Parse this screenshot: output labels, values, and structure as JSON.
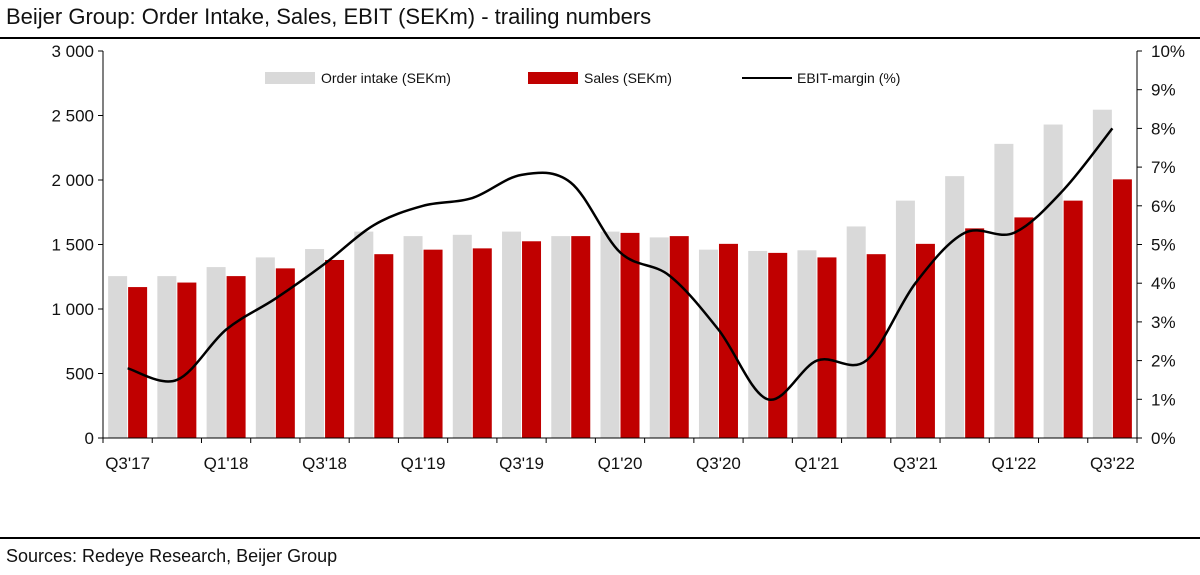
{
  "title": "Beijer Group: Order Intake, Sales, EBIT (SEKm) - trailing numbers",
  "source": "Sources: Redeye Research, Beijer  Group",
  "colors": {
    "order_intake": "#d9d9d9",
    "sales": "#c00000",
    "ebit": "#000000"
  },
  "chart_data": {
    "type": "bar",
    "grid": false,
    "legend_position": "top-center",
    "categories": [
      "Q3'17",
      "Q4'17",
      "Q1'18",
      "Q2'18",
      "Q3'18",
      "Q4'18",
      "Q1'19",
      "Q2'19",
      "Q3'19",
      "Q4'19",
      "Q1'20",
      "Q2'20",
      "Q3'20",
      "Q4'20",
      "Q1'21",
      "Q2'21",
      "Q3'21",
      "Q4'21",
      "Q1'22",
      "Q2'22",
      "Q3'22"
    ],
    "xtick_labels": [
      "Q3'17",
      "Q1'18",
      "Q3'18",
      "Q1'19",
      "Q3'19",
      "Q1'20",
      "Q3'20",
      "Q1'21",
      "Q3'21",
      "Q1'22",
      "Q3'22"
    ],
    "ylim": [
      0,
      3000
    ],
    "y_ticks": [
      "0",
      "500",
      "1 000",
      "1 500",
      "2 000",
      "2 500",
      "3 000"
    ],
    "y2lim": [
      0,
      10
    ],
    "y2_ticks": [
      "0%",
      "1%",
      "2%",
      "3%",
      "4%",
      "5%",
      "6%",
      "7%",
      "8%",
      "9%",
      "10%"
    ],
    "series": [
      {
        "name": "Order intake (SEKm)",
        "type": "bar",
        "axis": "left",
        "values": [
          1255,
          1255,
          1325,
          1400,
          1465,
          1600,
          1565,
          1575,
          1600,
          1565,
          1600,
          1555,
          1460,
          1450,
          1455,
          1640,
          1840,
          2030,
          2280,
          2430,
          2545
        ]
      },
      {
        "name": "Sales (SEKm)",
        "type": "bar",
        "axis": "left",
        "values": [
          1170,
          1205,
          1255,
          1315,
          1380,
          1425,
          1460,
          1470,
          1525,
          1565,
          1590,
          1565,
          1505,
          1435,
          1400,
          1425,
          1505,
          1625,
          1710,
          1840,
          2005
        ]
      },
      {
        "name": "EBIT-margin (%)",
        "type": "line",
        "axis": "right",
        "values": [
          1.8,
          1.5,
          2.8,
          3.6,
          4.5,
          5.5,
          6.0,
          6.2,
          6.8,
          6.6,
          4.8,
          4.2,
          2.8,
          1.0,
          2.0,
          2.0,
          4.0,
          5.3,
          5.3,
          6.4,
          8.0
        ]
      }
    ]
  }
}
